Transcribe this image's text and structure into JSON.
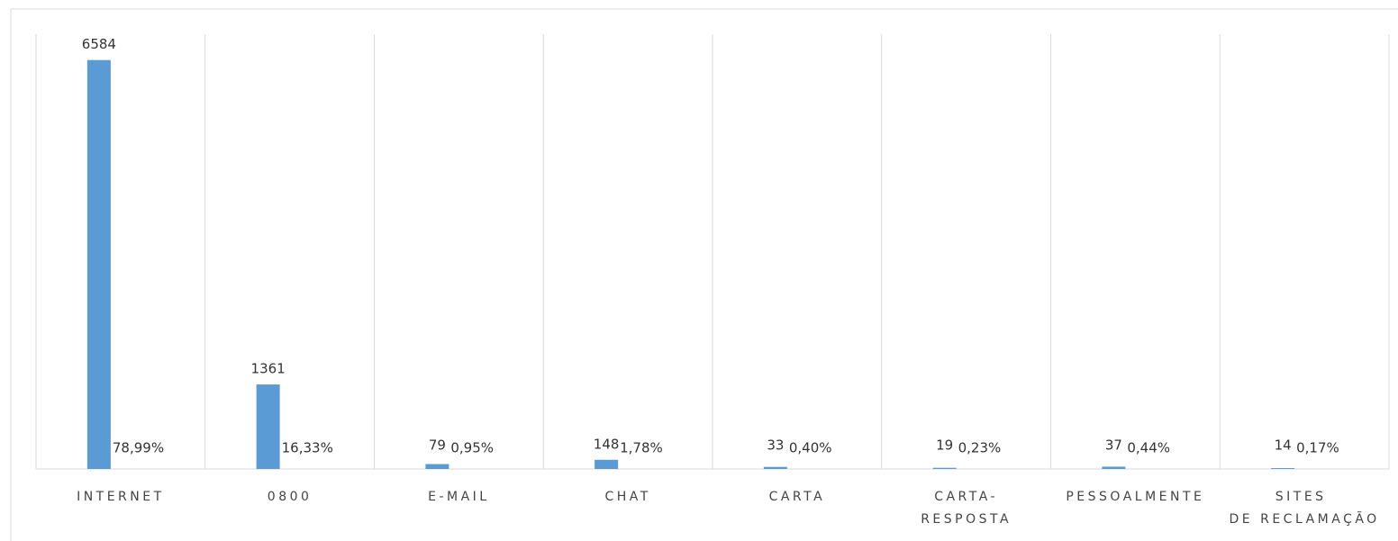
{
  "chart_data": {
    "type": "bar",
    "categories": [
      "INTERNET",
      "0800",
      "E-MAIL",
      "CHAT",
      "CARTA",
      "CARTA-RESPOSTA",
      "PESSOALMENTE",
      "SITES DE RECLAMAÇÃO"
    ],
    "series": [
      {
        "color": "#5b9bd5",
        "values": [
          6584,
          1361,
          79,
          148,
          33,
          19,
          37,
          14
        ]
      },
      {
        "color": "none",
        "values": [
          78.99,
          16.33,
          0.95,
          1.78,
          0.4,
          0.23,
          0.44,
          0.17
        ],
        "value_labels": [
          "78,99%",
          "16,33%",
          "0,95%",
          "1,78%",
          "0,40%",
          "0,23%",
          "0,44%",
          "0,17%"
        ]
      }
    ],
    "ylim": [
      0,
      7000
    ]
  }
}
